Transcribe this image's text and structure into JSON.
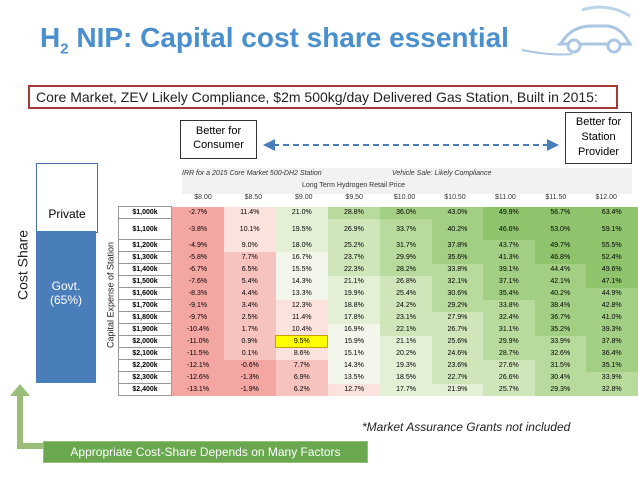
{
  "title": {
    "pre": "H",
    "sub": "2",
    "rest": " NIP: Capital cost share essential"
  },
  "subtitle": "Core Market, ZEV Likely Compliance, $2m 500kg/day Delivered Gas Station, Built in 2015:",
  "better_consumer": "Better for Consumer",
  "better_provider": "Better for Station Provider",
  "cost_share": "Cost Share",
  "private_label": "Private",
  "govt_label": "Govt.",
  "govt_pct": "(65%)",
  "capital_label": "Capital Expense of Station",
  "table": {
    "header1": "IRR for a 2015 Core Market 500-DH2 Station",
    "header1b": "Vehicle Sale: Likely Compliance",
    "header2": "Long Term Hydrogen Retail Price",
    "prices": [
      "$8.00",
      "$8.50",
      "$9.00",
      "$9.50",
      "$10.00",
      "$10.50",
      "$11.00",
      "$11.50",
      "$12.00"
    ],
    "rows": [
      {
        "label": "$1,000k",
        "vals": [
          "-2.7%",
          "11.4%",
          "21.0%",
          "28.8%",
          "36.0%",
          "43.0%",
          "49.9%",
          "56.7%",
          "63.4%"
        ]
      },
      {
        "label": "$1,100k",
        "vals": [
          "-3.8%",
          "10.1%",
          "19.5%",
          "26.9%",
          "33.7%",
          "40.2%",
          "46.6%",
          "53.0%",
          "59.1%"
        ]
      },
      {
        "label": "$1,200k",
        "vals": [
          "-4.9%",
          "9.0%",
          "18.0%",
          "25.2%",
          "31.7%",
          "37.8%",
          "43.7%",
          "49.7%",
          "55.5%"
        ]
      },
      {
        "label": "$1,300k",
        "vals": [
          "-5.8%",
          "7.7%",
          "16.7%",
          "23.7%",
          "29.9%",
          "35.6%",
          "41.3%",
          "46.8%",
          "52.4%"
        ]
      },
      {
        "label": "$1,400k",
        "vals": [
          "-6.7%",
          "6.5%",
          "15.5%",
          "22.3%",
          "28.2%",
          "33.8%",
          "39.1%",
          "44.4%",
          "49.6%"
        ]
      },
      {
        "label": "$1,500k",
        "vals": [
          "-7.6%",
          "5.4%",
          "14.3%",
          "21.1%",
          "26.8%",
          "32.1%",
          "37.1%",
          "42.1%",
          "47.1%"
        ]
      },
      {
        "label": "$1,600k",
        "vals": [
          "-8.3%",
          "4.4%",
          "13.3%",
          "19.9%",
          "25.4%",
          "30.6%",
          "35.4%",
          "40.2%",
          "44.9%"
        ]
      },
      {
        "label": "$1,700k",
        "vals": [
          "-9.1%",
          "3.4%",
          "12.3%",
          "18.8%",
          "24.2%",
          "29.2%",
          "33.8%",
          "38.4%",
          "42.8%"
        ]
      },
      {
        "label": "$1,800k",
        "vals": [
          "-9.7%",
          "2.5%",
          "11.4%",
          "17.8%",
          "23.1%",
          "27.9%",
          "32.4%",
          "36.7%",
          "41.0%"
        ]
      },
      {
        "label": "$1,900k",
        "vals": [
          "-10.4%",
          "1.7%",
          "10.4%",
          "16.9%",
          "22.1%",
          "26.7%",
          "31.1%",
          "35.2%",
          "39.3%"
        ]
      },
      {
        "label": "$2,000k",
        "vals": [
          "-11.0%",
          "0.9%",
          "9.5%",
          "15.9%",
          "21.1%",
          "25.6%",
          "29.9%",
          "33.9%",
          "37.8%"
        ]
      },
      {
        "label": "$2,100k",
        "vals": [
          "-11.5%",
          "0.1%",
          "8.6%",
          "15.1%",
          "20.2%",
          "24.6%",
          "28.7%",
          "32.6%",
          "36.4%"
        ]
      },
      {
        "label": "$2,200k",
        "vals": [
          "-12.1%",
          "-0.6%",
          "7.7%",
          "14.3%",
          "19.3%",
          "23.6%",
          "27.6%",
          "31.5%",
          "35.1%"
        ]
      },
      {
        "label": "$2,300k",
        "vals": [
          "-12.6%",
          "-1.3%",
          "6.9%",
          "13.5%",
          "18.5%",
          "22.7%",
          "26.6%",
          "30.4%",
          "33.9%"
        ]
      },
      {
        "label": "$2,400k",
        "vals": [
          "-13.1%",
          "-1.9%",
          "6.2%",
          "12.7%",
          "17.7%",
          "21.9%",
          "25.7%",
          "29.3%",
          "32.8%"
        ]
      }
    ]
  },
  "note": "*Market Assurance Grants not included",
  "bottom_box": "Appropriate Cost-Share Depends on Many Factors",
  "colors": {
    "accent": "#4a8fce",
    "govt": "#4a7ebb",
    "green_box": "#6aa84f",
    "highlight": "#ffff00"
  }
}
